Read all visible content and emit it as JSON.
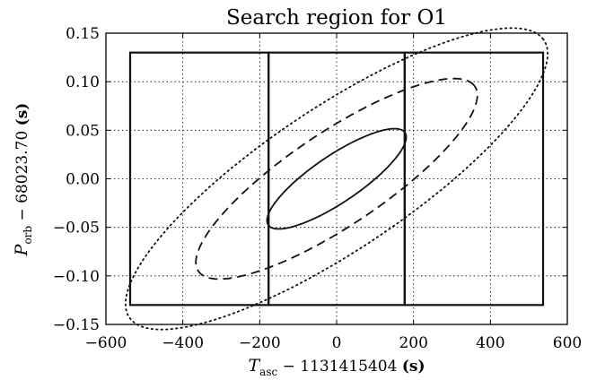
{
  "chart_data": {
    "type": "line",
    "title": "Search region for O1",
    "xlabel": {
      "main": "T",
      "sub": "asc",
      "rest": " − 1131415404 ",
      "unit": "(s)"
    },
    "ylabel": {
      "main": "P",
      "sub": "orb",
      "rest": " − 68023.70 ",
      "unit": "(s)"
    },
    "xlim": [
      -600,
      600
    ],
    "ylim": [
      -0.15,
      0.15
    ],
    "x_ticks": [
      -600,
      -400,
      -200,
      0,
      200,
      400,
      600
    ],
    "x_tick_labels": [
      "−600",
      "−400",
      "−200",
      "0",
      "200",
      "400",
      "600"
    ],
    "y_ticks": [
      -0.15,
      -0.1,
      -0.05,
      0.0,
      0.05,
      0.1,
      0.15
    ],
    "y_tick_labels": [
      "−0.15",
      "−0.10",
      "−0.05",
      "0.00",
      "0.05",
      "0.10",
      "0.15"
    ],
    "grid": true,
    "ellipses": [
      {
        "style": "solid",
        "center": [
          0,
          0
        ],
        "semi_major_end": [
          177,
          0.048
        ],
        "semi_minor_end": [
          -38,
          0.019
        ]
      },
      {
        "style": "dashed",
        "center": [
          0,
          0
        ],
        "semi_major_end": [
          358,
          0.096
        ],
        "semi_minor_end": [
          -76,
          0.038
        ]
      },
      {
        "style": "dotted",
        "center": [
          0,
          0
        ],
        "semi_major_end": [
          537,
          0.144
        ],
        "semi_minor_end": [
          -114,
          0.058
        ]
      }
    ],
    "rectangles": [
      {
        "x": [
          -537,
          -177
        ],
        "y": [
          -0.13,
          0.13
        ]
      },
      {
        "x": [
          -177,
          177
        ],
        "y": [
          -0.13,
          0.13
        ]
      },
      {
        "x": [
          177,
          537
        ],
        "y": [
          -0.13,
          0.13
        ]
      }
    ]
  }
}
